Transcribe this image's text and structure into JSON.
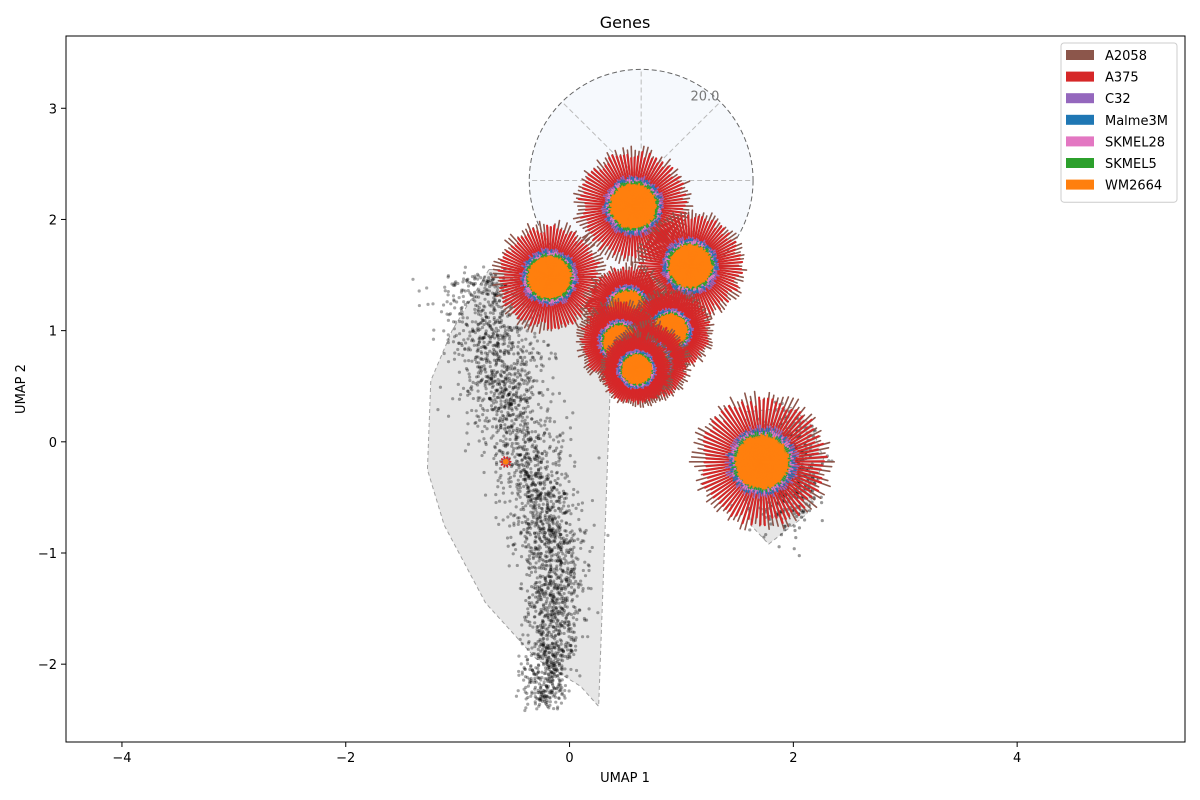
{
  "chart_data": {
    "type": "scatter",
    "title": "Genes",
    "xlabel": "UMAP 1",
    "ylabel": "UMAP 2",
    "xlim": [
      -4.5,
      5.5
    ],
    "ylim": [
      -2.7,
      3.65
    ],
    "xticks": [
      -4,
      -2,
      0,
      2,
      4
    ],
    "yticks": [
      -2,
      -1,
      0,
      1,
      2,
      3
    ],
    "grid": false,
    "legend_position": "top-right",
    "radial_scale_label": "20.0",
    "radial_reference": {
      "center": [
        0.64,
        2.35
      ],
      "radius": 1.0
    },
    "series": [
      {
        "name": "A2058",
        "color": "#8c564b"
      },
      {
        "name": "A375",
        "color": "#d62728"
      },
      {
        "name": "C32",
        "color": "#9467bd"
      },
      {
        "name": "Malme3M",
        "color": "#1f77b4"
      },
      {
        "name": "SKMEL28",
        "color": "#e377c2"
      },
      {
        "name": "SKMEL5",
        "color": "#2ca02c"
      },
      {
        "name": "WM2664",
        "color": "#ff7f0e"
      }
    ],
    "cluster_hulls": [
      [
        [
          -0.72,
          1.55
        ],
        [
          -0.35,
          1.55
        ],
        [
          -0.1,
          1.38
        ],
        [
          0.15,
          1.15
        ],
        [
          0.38,
          0.95
        ],
        [
          0.26,
          -2.38
        ],
        [
          0.1,
          -2.2
        ],
        [
          -0.3,
          -1.95
        ],
        [
          -0.75,
          -1.45
        ],
        [
          -1.12,
          -0.75
        ],
        [
          -1.27,
          -0.25
        ],
        [
          -1.24,
          0.55
        ],
        [
          -1.05,
          1.0
        ]
      ],
      [
        [
          1.58,
          0.27
        ],
        [
          1.98,
          0.31
        ],
        [
          2.16,
          0.15
        ],
        [
          2.27,
          -0.15
        ],
        [
          2.12,
          -0.65
        ],
        [
          1.78,
          -0.92
        ],
        [
          1.62,
          -0.75
        ],
        [
          1.55,
          -0.3
        ]
      ]
    ],
    "gene_glyphs": [
      {
        "center": [
          0.57,
          2.12
        ],
        "radius": 0.55
      },
      {
        "center": [
          1.08,
          1.58
        ],
        "radius": 0.52
      },
      {
        "center": [
          -0.18,
          1.48
        ],
        "radius": 0.52
      },
      {
        "center": [
          0.52,
          1.2
        ],
        "radius": 0.42
      },
      {
        "center": [
          0.9,
          1.0
        ],
        "radius": 0.4
      },
      {
        "center": [
          0.45,
          0.9
        ],
        "radius": 0.4
      },
      {
        "center": [
          0.72,
          0.72
        ],
        "radius": 0.38
      },
      {
        "center": [
          0.6,
          0.65
        ],
        "radius": 0.35
      },
      {
        "center": [
          1.72,
          -0.18
        ],
        "radius": 0.65
      },
      {
        "center": [
          -0.57,
          -0.18
        ],
        "radius": 0.05
      }
    ]
  }
}
